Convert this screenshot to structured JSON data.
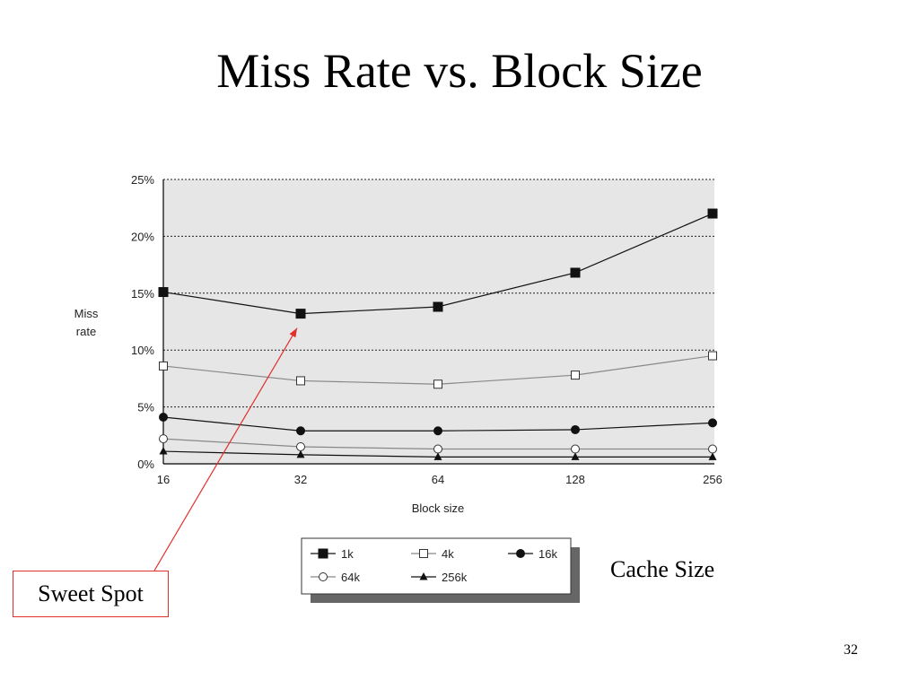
{
  "slide": {
    "title": "Miss Rate vs. Block Size",
    "annotation": "Sweet Spot",
    "legend_caption": "Cache Size",
    "page_number": "32"
  },
  "chart_data": {
    "type": "line",
    "title": "",
    "xlabel": "Block size",
    "ylabel_lines": [
      "Miss",
      "rate"
    ],
    "categories": [
      "16",
      "32",
      "64",
      "128",
      "256"
    ],
    "ylim": [
      0,
      25
    ],
    "ytick_labels": [
      "0%",
      "5%",
      "10%",
      "15%",
      "20%",
      "25%"
    ],
    "ytick_values": [
      0,
      5,
      10,
      15,
      20,
      25
    ],
    "grid": true,
    "legend_position": "bottom",
    "series": [
      {
        "name": "1k",
        "marker": "filled-square",
        "color": "#111111",
        "values": [
          15.1,
          13.2,
          13.8,
          16.8,
          22.0
        ]
      },
      {
        "name": "4k",
        "marker": "open-square",
        "color": "#888888",
        "values": [
          8.6,
          7.3,
          7.0,
          7.8,
          9.5
        ]
      },
      {
        "name": "16k",
        "marker": "filled-circle",
        "color": "#111111",
        "values": [
          4.1,
          2.9,
          2.9,
          3.0,
          3.6
        ]
      },
      {
        "name": "64k",
        "marker": "open-circle",
        "color": "#888888",
        "values": [
          2.2,
          1.5,
          1.3,
          1.3,
          1.3
        ]
      },
      {
        "name": "256k",
        "marker": "filled-triangle",
        "color": "#111111",
        "values": [
          1.1,
          0.8,
          0.6,
          0.6,
          0.6
        ]
      }
    ],
    "annotation_target": {
      "series": "1k",
      "category": "32"
    }
  }
}
